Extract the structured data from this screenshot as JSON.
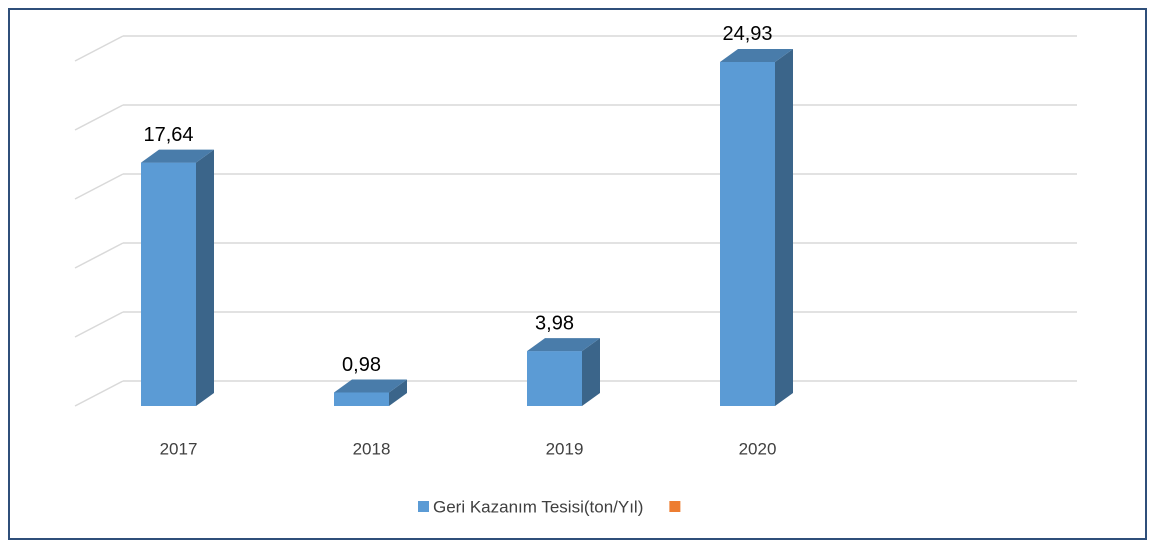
{
  "chart_data": {
    "type": "bar3d",
    "categories": [
      "2017",
      "2018",
      "2019",
      "2020"
    ],
    "series": [
      {
        "name": "Geri Kazanım Tesisi(ton/Yıl)",
        "color": "#5b9bd5",
        "values": [
          17.64,
          0.98,
          3.98,
          24.93
        ],
        "value_labels": [
          "17,64",
          "0,98",
          "3,98",
          "24,93"
        ]
      },
      {
        "color": "#ed7d31",
        "values": [
          null,
          null,
          null,
          null
        ]
      }
    ],
    "ylim": [
      0,
      25
    ],
    "yticks": [
      0,
      5,
      10,
      15,
      20,
      25
    ],
    "grid": true
  }
}
